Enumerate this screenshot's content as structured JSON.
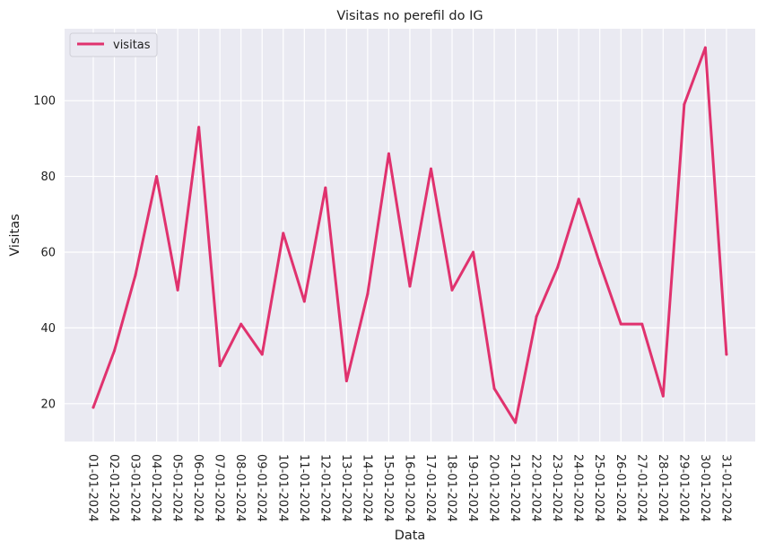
{
  "chart_data": {
    "type": "line",
    "title": "Visitas no perefil do IG",
    "xlabel": "Data",
    "ylabel": "Visitas",
    "ylim": [
      10,
      119
    ],
    "yticks": [
      20,
      40,
      60,
      80,
      100
    ],
    "grid": true,
    "legend_placement": "top-left",
    "x": [
      "01-01-2024",
      "02-01-2024",
      "03-01-2024",
      "04-01-2024",
      "05-01-2024",
      "06-01-2024",
      "07-01-2024",
      "08-01-2024",
      "09-01-2024",
      "10-01-2024",
      "11-01-2024",
      "12-01-2024",
      "13-01-2024",
      "14-01-2024",
      "15-01-2024",
      "16-01-2024",
      "17-01-2024",
      "18-01-2024",
      "19-01-2024",
      "20-01-2024",
      "21-01-2024",
      "22-01-2024",
      "23-01-2024",
      "24-01-2024",
      "25-01-2024",
      "26-01-2024",
      "27-01-2024",
      "28-01-2024",
      "29-01-2024",
      "30-01-2024",
      "31-01-2024"
    ],
    "series": [
      {
        "name": "visitas",
        "color": "#e0326e",
        "values": [
          19,
          34,
          54,
          80,
          50,
          93,
          30,
          41,
          33,
          65,
          47,
          77,
          26,
          49,
          86,
          51,
          82,
          50,
          60,
          24,
          15,
          43,
          56,
          74,
          57,
          41,
          41,
          22,
          99,
          114,
          33
        ]
      }
    ]
  },
  "style": {
    "plot_background": "#eaeaf2",
    "grid_color": "#ffffff"
  }
}
